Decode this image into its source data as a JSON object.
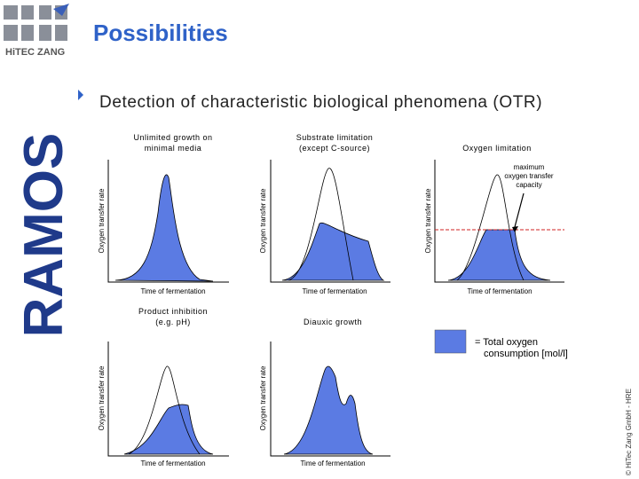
{
  "header": {
    "logo": "HiTEC ZANG",
    "title": "Possibilities"
  },
  "side_logo": "RAMOS",
  "bullet": "Detection of characteristic biological phenomena (OTR)",
  "panels": [
    {
      "title": [
        "Unlimited growth on",
        "minimal media"
      ],
      "y_label": "Oxygen transfer rate",
      "x_label": "Time of fermentation"
    },
    {
      "title": [
        "Substrate limitation",
        "(except C-source)"
      ],
      "y_label": "Oxygen transfer rate",
      "x_label": "Time of fermentation"
    },
    {
      "title": [
        "Oxygen limitation"
      ],
      "y_label": "Oxygen transfer rate",
      "x_label": "Time of fermentation"
    },
    {
      "title": [
        "Product inhibition",
        "(e.g. pH)"
      ],
      "y_label": "Oxygen transfer rate",
      "x_label": "Time of fermentation"
    },
    {
      "title": [
        "Diauxic growth"
      ],
      "y_label": "Oxygen transfer rate",
      "x_label": "Time of fermentation"
    }
  ],
  "annotation": [
    "maximum",
    "oxygen transfer",
    "capacity"
  ],
  "legend": [
    "= Total oxygen",
    "consumption [mol/l]"
  ],
  "copyright": "© HiTec Zang GmbH - HRE"
}
